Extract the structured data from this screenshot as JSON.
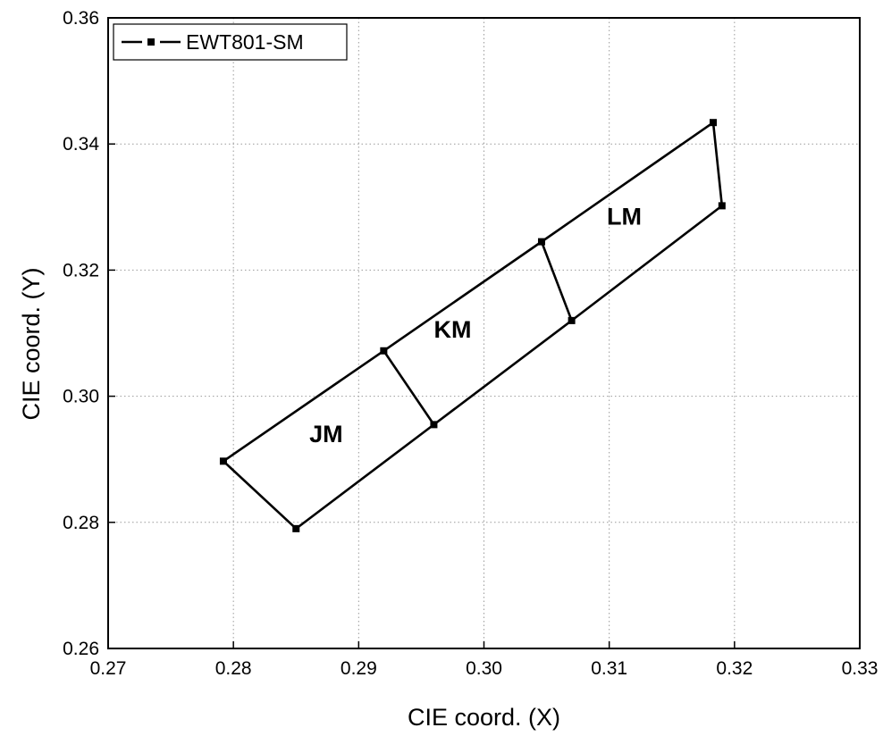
{
  "chart_data": {
    "type": "line",
    "title": "",
    "xlabel": "CIE coord. (X)",
    "ylabel": "CIE coord. (Y)",
    "xlim": [
      0.27,
      0.33
    ],
    "ylim": [
      0.26,
      0.36
    ],
    "xticks": [
      "0.27",
      "0.28",
      "0.29",
      "0.30",
      "0.31",
      "0.32",
      "0.33"
    ],
    "yticks": [
      "0.26",
      "0.28",
      "0.30",
      "0.32",
      "0.34",
      "0.36"
    ],
    "grid": true,
    "legend_position": "top-left",
    "series": [
      {
        "name": "EWT801-SM",
        "color": "#000000",
        "marker": "square",
        "vertices": [
          {
            "x": 0.2792,
            "y": 0.2897
          },
          {
            "x": 0.285,
            "y": 0.279
          },
          {
            "x": 0.296,
            "y": 0.2955
          },
          {
            "x": 0.307,
            "y": 0.312
          },
          {
            "x": 0.319,
            "y": 0.3302
          },
          {
            "x": 0.3183,
            "y": 0.3434
          },
          {
            "x": 0.3046,
            "y": 0.3245
          },
          {
            "x": 0.292,
            "y": 0.3072
          }
        ],
        "edges": [
          [
            0,
            1
          ],
          [
            1,
            2
          ],
          [
            2,
            3
          ],
          [
            3,
            4
          ],
          [
            4,
            5
          ],
          [
            5,
            6
          ],
          [
            6,
            7
          ],
          [
            7,
            0
          ],
          [
            7,
            2
          ],
          [
            6,
            3
          ]
        ]
      }
    ],
    "regions": [
      {
        "label": "JM",
        "x": 0.2874,
        "y": 0.2927
      },
      {
        "label": "KM",
        "x": 0.2975,
        "y": 0.3093
      },
      {
        "label": "LM",
        "x": 0.3112,
        "y": 0.3272
      }
    ]
  }
}
